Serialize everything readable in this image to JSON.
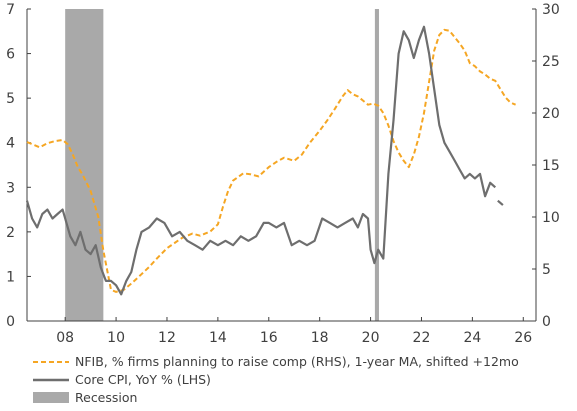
{
  "chart_data": {
    "type": "line",
    "title": "",
    "x_axis": {
      "range": [
        2006.5,
        2026.5
      ],
      "ticks": [
        2008,
        2010,
        2012,
        2014,
        2016,
        2018,
        2020,
        2022,
        2024,
        2026
      ],
      "tick_labels": [
        "08",
        "10",
        "12",
        "14",
        "16",
        "18",
        "20",
        "22",
        "24",
        "26"
      ]
    },
    "y_left": {
      "range": [
        0,
        7
      ],
      "ticks": [
        0,
        1,
        2,
        3,
        4,
        5,
        6,
        7
      ],
      "label": ""
    },
    "y_right": {
      "range": [
        0,
        30
      ],
      "ticks": [
        0,
        5,
        10,
        15,
        20,
        25,
        30
      ],
      "label": ""
    },
    "grid": false,
    "legend_position": "bottom-left",
    "recessions": [
      {
        "start": 2008.0,
        "end": 2009.5
      },
      {
        "start": 2020.17,
        "end": 2020.33
      }
    ],
    "series": [
      {
        "name": "NFIB, % firms planning to raise comp (RHS), 1-year MA, shifted +12mo",
        "axis": "right",
        "color": "#f5a623",
        "style": "dashed",
        "x": [
          2006.5,
          2006.8,
          2007.0,
          2007.3,
          2007.6,
          2007.9,
          2008.1,
          2008.3,
          2008.5,
          2008.7,
          2009.0,
          2009.3,
          2009.5,
          2009.8,
          2010.0,
          2010.3,
          2010.6,
          2011.0,
          2011.3,
          2011.6,
          2012.0,
          2012.3,
          2012.6,
          2013.0,
          2013.3,
          2013.5,
          2013.7,
          2014.0,
          2014.2,
          2014.4,
          2014.6,
          2015.0,
          2015.3,
          2015.6,
          2016.0,
          2016.3,
          2016.6,
          2017.0,
          2017.3,
          2017.6,
          2018.0,
          2018.3,
          2018.6,
          2018.9,
          2019.1,
          2019.3,
          2019.5,
          2019.7,
          2019.9,
          2020.1,
          2020.3,
          2020.5,
          2020.7,
          2020.9,
          2021.1,
          2021.3,
          2021.5,
          2021.7,
          2021.9,
          2022.1,
          2022.3,
          2022.5,
          2022.7,
          2022.9,
          2023.1,
          2023.3,
          2023.5,
          2023.7,
          2023.9,
          2024.1,
          2024.3,
          2024.5,
          2024.7,
          2024.9,
          2025.1,
          2025.3,
          2025.5,
          2025.7
        ],
        "y": [
          17.2,
          16.9,
          16.7,
          17.1,
          17.3,
          17.4,
          17.0,
          16.0,
          14.8,
          14.0,
          12.5,
          10.0,
          6.8,
          3.0,
          2.8,
          3.0,
          3.6,
          4.5,
          5.2,
          6.0,
          7.0,
          7.5,
          8.0,
          8.4,
          8.2,
          8.4,
          8.6,
          9.3,
          11.0,
          12.5,
          13.5,
          14.2,
          14.1,
          13.9,
          14.8,
          15.3,
          15.7,
          15.4,
          16.0,
          17.1,
          18.3,
          19.3,
          20.4,
          21.6,
          22.2,
          21.8,
          21.6,
          21.2,
          20.8,
          20.9,
          20.7,
          20.0,
          18.8,
          17.3,
          16.2,
          15.4,
          14.8,
          16.0,
          17.7,
          20.0,
          23.0,
          26.0,
          27.5,
          28.0,
          27.9,
          27.3,
          26.7,
          26.0,
          24.8,
          24.5,
          24.0,
          23.7,
          23.3,
          23.1,
          22.3,
          21.5,
          21.0,
          20.8
        ]
      },
      {
        "name": "Core CPI, YoY % (LHS)",
        "axis": "left",
        "color": "#6e6e6e",
        "style": "solid",
        "x": [
          2006.5,
          2006.7,
          2006.9,
          2007.1,
          2007.3,
          2007.5,
          2007.7,
          2007.9,
          2008.0,
          2008.2,
          2008.4,
          2008.6,
          2008.8,
          2009.0,
          2009.2,
          2009.4,
          2009.6,
          2009.8,
          2010.0,
          2010.2,
          2010.4,
          2010.6,
          2010.8,
          2011.0,
          2011.3,
          2011.6,
          2011.9,
          2012.2,
          2012.5,
          2012.8,
          2013.1,
          2013.4,
          2013.7,
          2014.0,
          2014.3,
          2014.6,
          2014.9,
          2015.2,
          2015.5,
          2015.8,
          2016.0,
          2016.3,
          2016.6,
          2016.9,
          2017.2,
          2017.5,
          2017.8,
          2018.1,
          2018.4,
          2018.7,
          2019.0,
          2019.3,
          2019.5,
          2019.7,
          2019.9,
          2020.0,
          2020.15,
          2020.3,
          2020.5,
          2020.7,
          2020.9,
          2021.1,
          2021.3,
          2021.5,
          2021.7,
          2021.9,
          2022.1,
          2022.3,
          2022.5,
          2022.7,
          2022.9,
          2023.1,
          2023.3,
          2023.5,
          2023.7,
          2023.9,
          2024.1,
          2024.3,
          2024.5,
          2024.7,
          2024.9
        ],
        "y": [
          2.7,
          2.3,
          2.1,
          2.4,
          2.5,
          2.3,
          2.4,
          2.5,
          2.3,
          1.9,
          1.7,
          2.0,
          1.6,
          1.5,
          1.7,
          1.2,
          0.9,
          0.9,
          0.8,
          0.6,
          0.9,
          1.1,
          1.6,
          2.0,
          2.1,
          2.3,
          2.2,
          1.9,
          2.0,
          1.8,
          1.7,
          1.6,
          1.8,
          1.7,
          1.8,
          1.7,
          1.9,
          1.8,
          1.9,
          2.2,
          2.2,
          2.1,
          2.2,
          1.7,
          1.8,
          1.7,
          1.8,
          2.3,
          2.2,
          2.1,
          2.2,
          2.3,
          2.1,
          2.4,
          2.3,
          1.6,
          1.3,
          1.6,
          1.4,
          3.3,
          4.5,
          6.0,
          6.5,
          6.3,
          5.9,
          6.3,
          6.6,
          6.0,
          5.2,
          4.4,
          4.0,
          3.8,
          3.6,
          3.4,
          3.2,
          3.3,
          3.2,
          3.3,
          2.8,
          3.1,
          3.0
        ]
      },
      {
        "name": "",
        "axis": "left",
        "color": "#6e6e6e",
        "style": "solid",
        "x": [
          2025.0,
          2025.2
        ],
        "y": [
          2.7,
          2.6
        ]
      }
    ],
    "legend": [
      {
        "label": "NFIB, % firms planning to raise comp (RHS), 1-year MA, shifted +12mo",
        "kind": "dashed-line",
        "color": "#f5a623"
      },
      {
        "label": "Core CPI, YoY % (LHS)",
        "kind": "line",
        "color": "#6e6e6e"
      },
      {
        "label": "Recession",
        "kind": "box",
        "color": "#a9a9a9"
      }
    ]
  }
}
